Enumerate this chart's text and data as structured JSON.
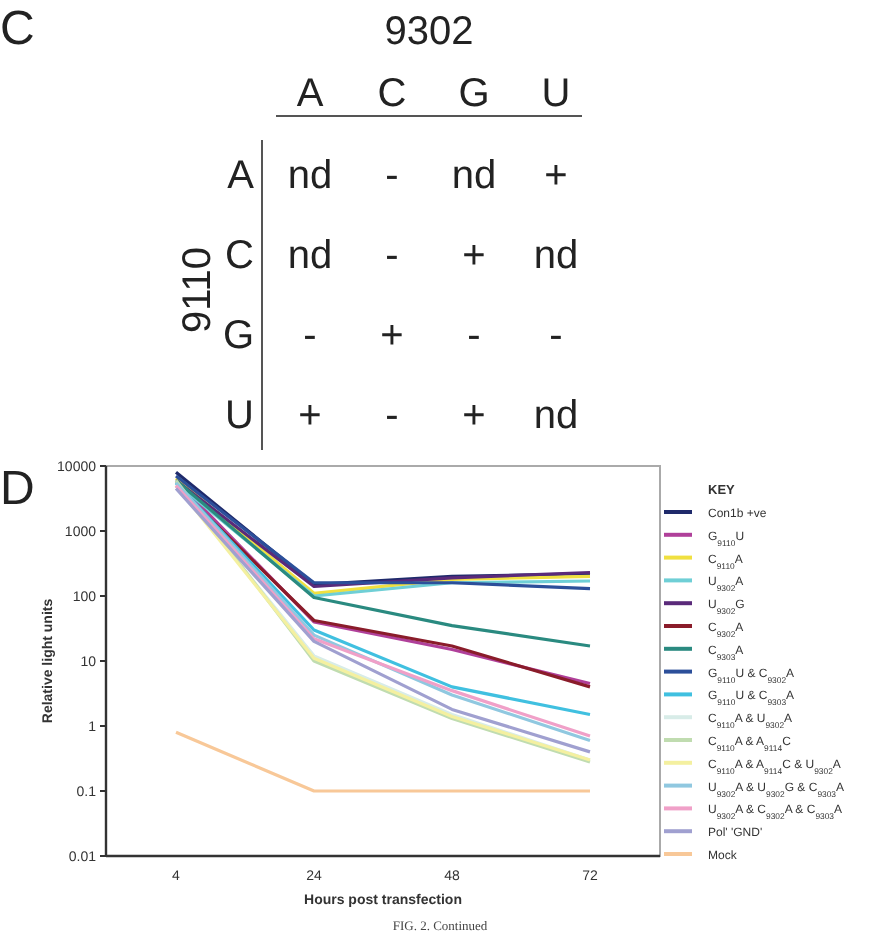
{
  "chart_data": [
    {
      "type": "heatmap",
      "title": "9302",
      "ylabel": "9110",
      "annotations": [
        "C"
      ],
      "categories": [
        "A",
        "C",
        "G",
        "U"
      ],
      "y_categories": [
        "A",
        "C",
        "G",
        "U"
      ],
      "cells": [
        [
          null,
          null,
          null,
          null
        ],
        [
          null,
          null,
          null,
          null
        ],
        [
          null,
          null,
          null,
          null
        ],
        [
          null,
          null,
          null,
          null
        ]
      ],
      "cell_labels": [
        [
          "nd",
          "-",
          "nd",
          "+"
        ],
        [
          "nd",
          "-",
          "+",
          "nd"
        ],
        [
          "-",
          "+",
          "-",
          "-"
        ],
        [
          "+",
          "-",
          "+",
          "nd"
        ]
      ]
    },
    {
      "type": "line",
      "annotations": [
        "D",
        "FIG. 2. Continued"
      ],
      "xlabel": "Hours post transfection",
      "ylabel": "Relative light units",
      "legend_title": "KEY",
      "legend": "right",
      "log": true,
      "ylim": [
        0.01,
        10000
      ],
      "yticks": [
        0.01,
        0.1,
        1,
        10,
        100,
        1000,
        10000
      ],
      "categories": [
        "4",
        "24",
        "48",
        "72"
      ],
      "series": [
        {
          "name": "Con1b +ve",
          "color": "#1f2a6b",
          "values": [
            8000,
            150,
            200,
            220
          ]
        },
        {
          "name": "G$_{9110}$U",
          "color": "#b0409a",
          "values": [
            6000,
            40,
            15,
            4.5
          ]
        },
        {
          "name": "C$_{9110}$A",
          "color": "#f0e040",
          "values": [
            6500,
            110,
            180,
            200
          ]
        },
        {
          "name": "U$_{9302}$A",
          "color": "#6fcfd6",
          "values": [
            5500,
            100,
            160,
            170
          ]
        },
        {
          "name": "U$_{9302}$G",
          "color": "#5a2a7a",
          "values": [
            6000,
            140,
            190,
            230
          ]
        },
        {
          "name": "C$_{9302}$A",
          "color": "#8a1c2a",
          "values": [
            5000,
            42,
            17,
            4
          ]
        },
        {
          "name": "C$_{9303}$A",
          "color": "#2a8a80",
          "values": [
            6000,
            95,
            35,
            17
          ]
        },
        {
          "name": "G$_{9110}$U & C$_{9302}$A",
          "color": "#2c4f9a",
          "values": [
            7000,
            160,
            160,
            130
          ]
        },
        {
          "name": "G$_{9110}$U & C$_{9303}$A",
          "color": "#40c0e0",
          "values": [
            5500,
            30,
            4,
            1.5
          ]
        },
        {
          "name": "C$_{9110}$A & U$_{9302}$A",
          "color": "#d8ece8",
          "values": [
            5000,
            12,
            1.5,
            0.3
          ]
        },
        {
          "name": "C$_{9110}$A & A$_{9114}$C",
          "color": "#c0dcb0",
          "values": [
            6000,
            10,
            1.3,
            0.28
          ]
        },
        {
          "name": "C$_{9110}$A & A$_{9114}$C & U$_{9302}$A",
          "color": "#f4f0a0",
          "values": [
            5000,
            11,
            1.4,
            0.3
          ]
        },
        {
          "name": "U$_{9302}$A & U$_{9302}$G & C$_{9303}$A",
          "color": "#90c8e0",
          "values": [
            5500,
            25,
            3,
            0.6
          ]
        },
        {
          "name": "U$_{9302}$A & C$_{9302}$A & C$_{9303}$A",
          "color": "#f0a0c8",
          "values": [
            5000,
            22,
            3.5,
            0.7
          ]
        },
        {
          "name": "Pol' 'GND'",
          "color": "#a0a0d0",
          "values": [
            4500,
            20,
            1.8,
            0.4
          ]
        },
        {
          "name": "Mock",
          "color": "#f8c898",
          "values": [
            0.8,
            0.1,
            0.1,
            0.1
          ]
        }
      ]
    }
  ]
}
